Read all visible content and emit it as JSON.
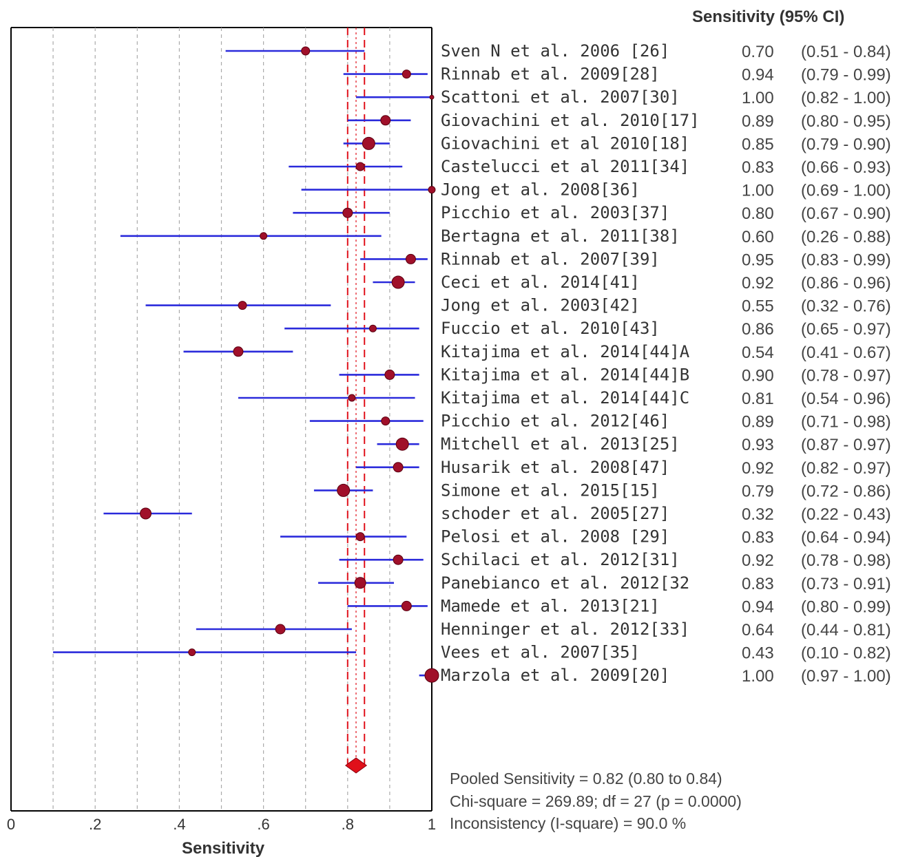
{
  "chart_data": {
    "type": "forest",
    "header": "Sensitivity (95% CI)",
    "xlabel": "Sensitivity",
    "xlim": [
      0,
      1
    ],
    "ticks": [
      "0",
      ".2",
      ".4",
      ".6",
      ".8",
      "1"
    ],
    "grid": "dotted vertical",
    "studies": [
      {
        "name": "Sven N et al. 2006 [26]",
        "est": 0.7,
        "lo": 0.51,
        "hi": 0.84,
        "label": "0.70",
        "ci": "(0.51 - 0.84)",
        "w": 6
      },
      {
        "name": "Rinnab et al. 2009[28]",
        "est": 0.94,
        "lo": 0.79,
        "hi": 0.99,
        "label": "0.94",
        "ci": "(0.79 - 0.99)",
        "w": 6
      },
      {
        "name": "Scattoni et al. 2007[30]",
        "est": 1.0,
        "lo": 0.82,
        "hi": 1.0,
        "label": "1.00",
        "ci": "(0.82 - 1.00)",
        "w": 3
      },
      {
        "name": "Giovachini et al. 2010[17]",
        "est": 0.89,
        "lo": 0.8,
        "hi": 0.95,
        "label": "0.89",
        "ci": "(0.80 - 0.95)",
        "w": 7
      },
      {
        "name": "Giovachini et al 2010[18]",
        "est": 0.85,
        "lo": 0.79,
        "hi": 0.9,
        "label": "0.85",
        "ci": "(0.79 - 0.90)",
        "w": 9
      },
      {
        "name": "Castelucci et al 2011[34]",
        "est": 0.83,
        "lo": 0.66,
        "hi": 0.93,
        "label": "0.83",
        "ci": "(0.66 - 0.93)",
        "w": 6
      },
      {
        "name": "Jong et al. 2008[36]",
        "est": 1.0,
        "lo": 0.69,
        "hi": 1.0,
        "label": "1.00",
        "ci": "(0.69 - 1.00)",
        "w": 5
      },
      {
        "name": "Picchio et al. 2003[37]",
        "est": 0.8,
        "lo": 0.67,
        "hi": 0.9,
        "label": "0.80",
        "ci": "(0.67 - 0.90)",
        "w": 7
      },
      {
        "name": "Bertagna et al. 2011[38]",
        "est": 0.6,
        "lo": 0.26,
        "hi": 0.88,
        "label": "0.60",
        "ci": "(0.26 - 0.88)",
        "w": 5
      },
      {
        "name": "Rinnab et al. 2007[39]",
        "est": 0.95,
        "lo": 0.83,
        "hi": 0.99,
        "label": "0.95",
        "ci": "(0.83 - 0.99)",
        "w": 7
      },
      {
        "name": "Ceci et al. 2014[41]",
        "est": 0.92,
        "lo": 0.86,
        "hi": 0.96,
        "label": "0.92",
        "ci": "(0.86 - 0.96)",
        "w": 9
      },
      {
        "name": "Jong et al. 2003[42]",
        "est": 0.55,
        "lo": 0.32,
        "hi": 0.76,
        "label": "0.55",
        "ci": "(0.32 - 0.76)",
        "w": 6
      },
      {
        "name": "Fuccio et al. 2010[43]",
        "est": 0.86,
        "lo": 0.65,
        "hi": 0.97,
        "label": "0.86",
        "ci": "(0.65 - 0.97)",
        "w": 5
      },
      {
        "name": "Kitajima et al. 2014[44]A",
        "est": 0.54,
        "lo": 0.41,
        "hi": 0.67,
        "label": "0.54",
        "ci": "(0.41 - 0.67)",
        "w": 7
      },
      {
        "name": "Kitajima et al. 2014[44]B",
        "est": 0.9,
        "lo": 0.78,
        "hi": 0.97,
        "label": "0.90",
        "ci": "(0.78 - 0.97)",
        "w": 7
      },
      {
        "name": "Kitajima et al. 2014[44]C",
        "est": 0.81,
        "lo": 0.54,
        "hi": 0.96,
        "label": "0.81",
        "ci": "(0.54 - 0.96)",
        "w": 5
      },
      {
        "name": "Picchio et al. 2012[46]",
        "est": 0.89,
        "lo": 0.71,
        "hi": 0.98,
        "label": "0.89",
        "ci": "(0.71 - 0.98)",
        "w": 6
      },
      {
        "name": "Mitchell et al. 2013[25]",
        "est": 0.93,
        "lo": 0.87,
        "hi": 0.97,
        "label": "0.93",
        "ci": "(0.87 - 0.97)",
        "w": 9
      },
      {
        "name": "Husarik et al. 2008[47]",
        "est": 0.92,
        "lo": 0.82,
        "hi": 0.97,
        "label": "0.92",
        "ci": "(0.82 - 0.97)",
        "w": 7
      },
      {
        "name": "Simone et al. 2015[15]",
        "est": 0.79,
        "lo": 0.72,
        "hi": 0.86,
        "label": "0.79",
        "ci": "(0.72 - 0.86)",
        "w": 9
      },
      {
        "name": "schoder et al. 2005[27]",
        "est": 0.32,
        "lo": 0.22,
        "hi": 0.43,
        "label": "0.32",
        "ci": "(0.22 - 0.43)",
        "w": 8
      },
      {
        "name": "Pelosi et al. 2008 [29]",
        "est": 0.83,
        "lo": 0.64,
        "hi": 0.94,
        "label": "0.83",
        "ci": "(0.64 - 0.94)",
        "w": 6
      },
      {
        "name": "Schilaci et al. 2012[31]",
        "est": 0.92,
        "lo": 0.78,
        "hi": 0.98,
        "label": "0.92",
        "ci": "(0.78 - 0.98)",
        "w": 7
      },
      {
        "name": "Panebianco et al. 2012[32",
        "est": 0.83,
        "lo": 0.73,
        "hi": 0.91,
        "label": "0.83",
        "ci": "(0.73 - 0.91)",
        "w": 8
      },
      {
        "name": "Mamede et al. 2013[21]",
        "est": 0.94,
        "lo": 0.8,
        "hi": 0.99,
        "label": "0.94",
        "ci": "(0.80 - 0.99)",
        "w": 7
      },
      {
        "name": "Henninger et al. 2012[33]",
        "est": 0.64,
        "lo": 0.44,
        "hi": 0.81,
        "label": "0.64",
        "ci": "(0.44 - 0.81)",
        "w": 7
      },
      {
        "name": "Vees et al. 2007[35]",
        "est": 0.43,
        "lo": 0.1,
        "hi": 0.82,
        "label": "0.43",
        "ci": "(0.10 - 0.82)",
        "w": 5
      },
      {
        "name": "Marzola et al. 2009[20]",
        "est": 1.0,
        "lo": 0.97,
        "hi": 1.0,
        "label": "1.00",
        "ci": "(0.97 - 1.00)",
        "w": 10
      }
    ],
    "pooled": {
      "est": 0.82,
      "lo": 0.8,
      "hi": 0.84
    },
    "summary_lines": [
      "Pooled Sensitivity = 0.82 (0.80 to 0.84)",
      "Chi-square = 269.89; df =  27 (p = 0.0000)",
      "Inconsistency (I-square) = 90.0 %"
    ],
    "colors": {
      "ci_line": "#2a2adb",
      "marker": "#a0102a",
      "pooled": "#e0101a",
      "grid": "#aaaaaa"
    }
  }
}
